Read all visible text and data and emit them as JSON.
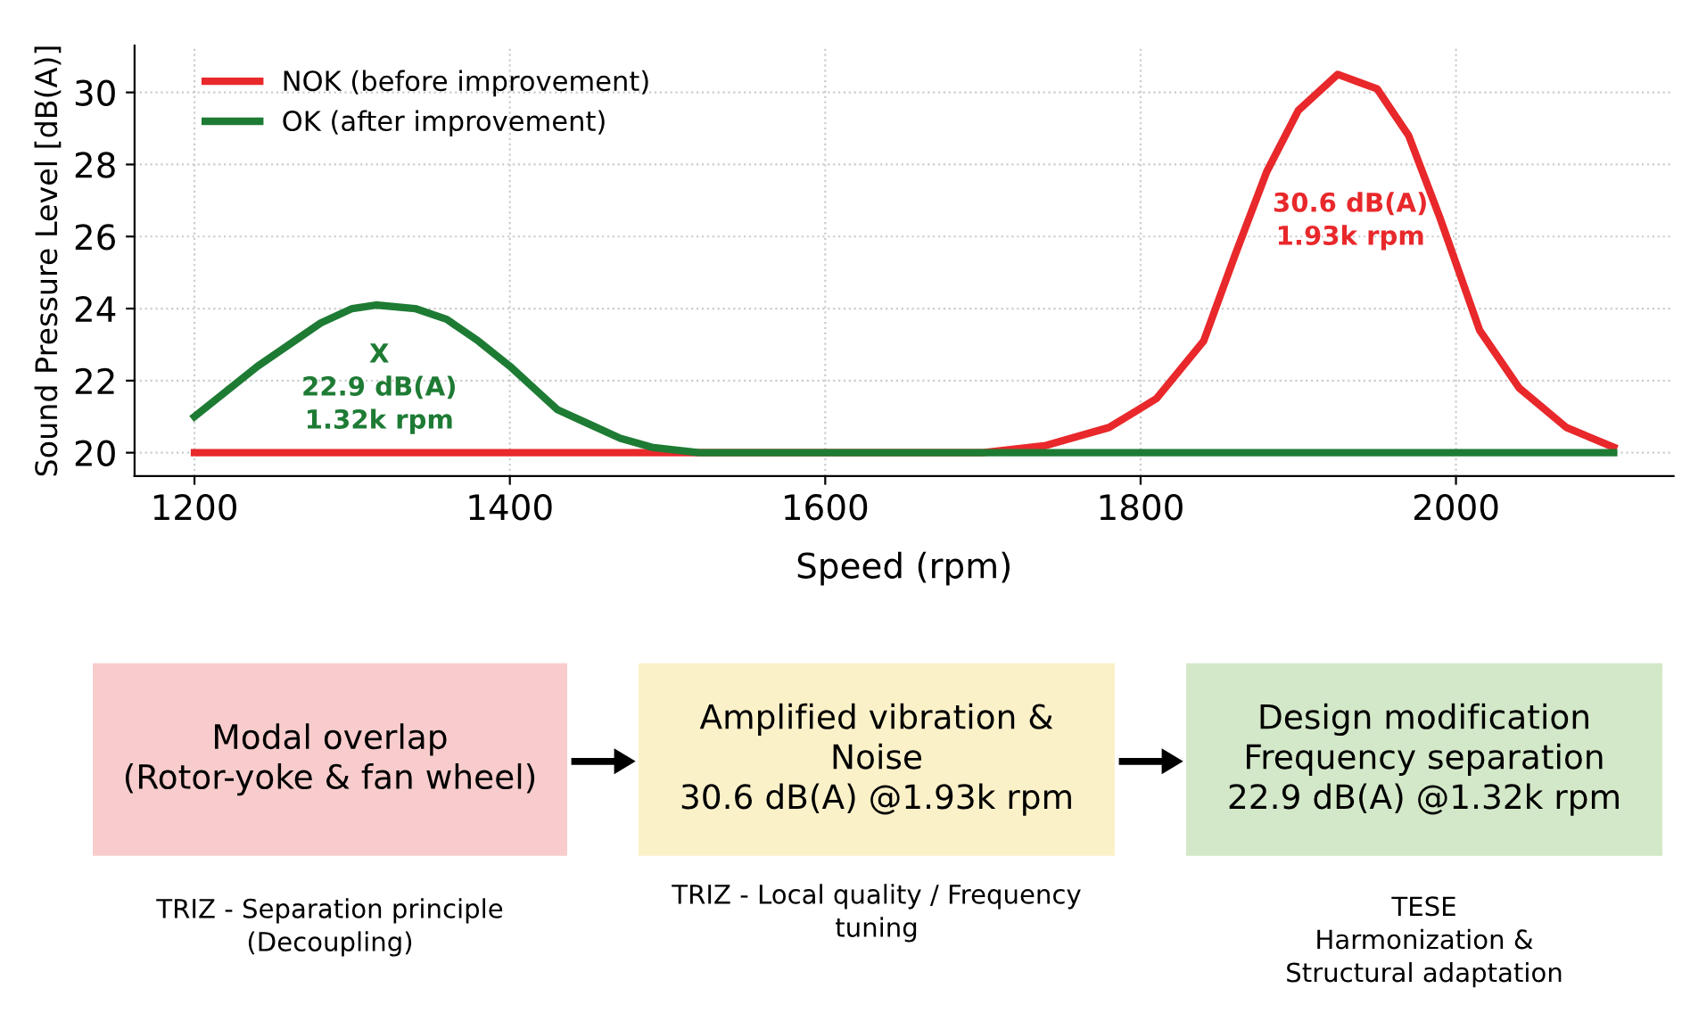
{
  "chart_data": [
    {
      "type": "line",
      "xlabel": "Speed (rpm)",
      "ylabel": "Sound Pressure Level [dB(A)]",
      "xlim": [
        1162,
        2138
      ],
      "ylim": [
        19.35,
        31.3
      ],
      "xticks": [
        1200,
        1400,
        1600,
        1800,
        2000
      ],
      "yticks": [
        20,
        22,
        24,
        26,
        28,
        30
      ],
      "grid": true,
      "legend": "top left",
      "line_style": "solid",
      "series": [
        {
          "name": "NOK (before improvement)",
          "color": "#e8282b",
          "x": [
            1200,
            1700,
            1740,
            1780,
            1810,
            1840,
            1860,
            1880,
            1900,
            1925,
            1950,
            1970,
            1990,
            2015,
            2040,
            2070,
            2100
          ],
          "values": [
            20,
            20,
            20.2,
            20.7,
            21.5,
            23.1,
            25.5,
            27.8,
            29.5,
            30.5,
            30.1,
            28.8,
            26.5,
            23.4,
            21.8,
            20.7,
            20.15
          ]
        },
        {
          "name": "OK (after improvement)",
          "color": "#1e7b34",
          "x": [
            1200,
            1220,
            1240,
            1260,
            1280,
            1300,
            1315,
            1340,
            1360,
            1380,
            1400,
            1420,
            1430,
            1450,
            1470,
            1490,
            1520,
            2100
          ],
          "values": [
            21.0,
            21.7,
            22.4,
            23.0,
            23.6,
            24.0,
            24.1,
            24.0,
            23.7,
            23.1,
            22.4,
            21.6,
            21.2,
            20.8,
            20.4,
            20.15,
            20.0,
            20.0
          ]
        }
      ],
      "annotations": [
        "X\n22.9 dB(A)\n1.32k rpm",
        "30.6 dB(A)\n1.93k rpm"
      ]
    },
    {
      "type": "other",
      "colors": [
        "#f8cccc",
        "#fbf1c9",
        "#d3e8c8"
      ],
      "annotations": [
        "Modal overlap\n(Rotor-yoke & fan wheel)",
        "Amplified vibration &\nNoise\n30.6 dB(A) @1.93k rpm",
        "Design modification\nFrequency separation\n22.9 dB(A) @1.32k rpm",
        "TRIZ - Separation principle\n(Decoupling)",
        "TRIZ - Local quality / Frequency\ntuning",
        "TESE\nHarmonization &\nStructural adaptation"
      ]
    }
  ]
}
